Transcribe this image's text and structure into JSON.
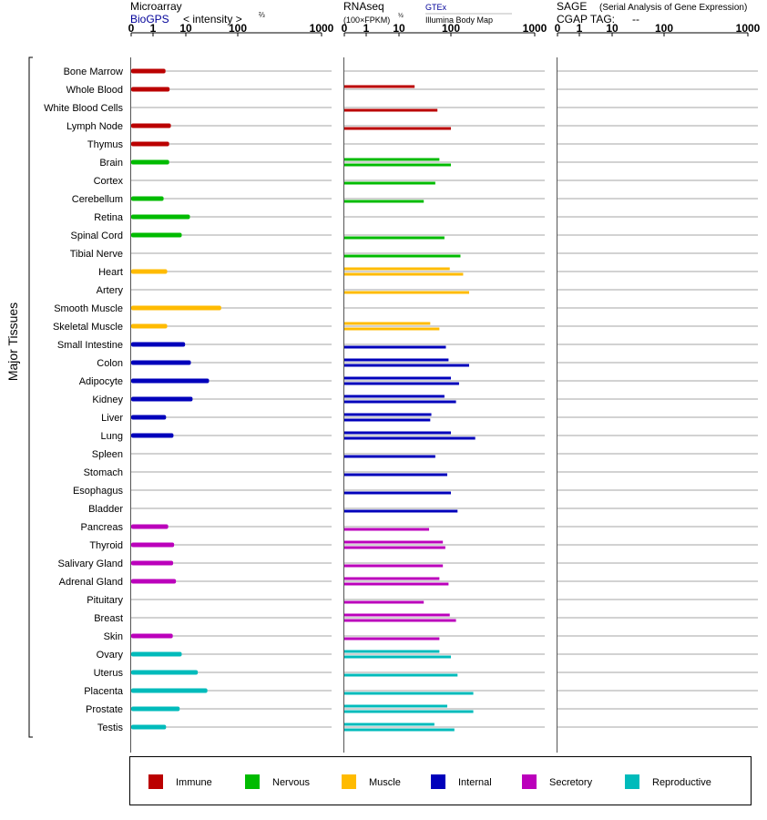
{
  "chart_data": {
    "type": "bar",
    "title": "",
    "ylabel": "Major Tissues",
    "categories": [
      "Bone Marrow",
      "Whole Blood",
      "White Blood Cells",
      "Lymph Node",
      "Thymus",
      "Brain",
      "Cortex",
      "Cerebellum",
      "Retina",
      "Spinal Cord",
      "Tibial Nerve",
      "Heart",
      "Artery",
      "Smooth Muscle",
      "Skeletal Muscle",
      "Small Intestine",
      "Colon",
      "Adipocyte",
      "Kidney",
      "Liver",
      "Lung",
      "Spleen",
      "Stomach",
      "Esophagus",
      "Bladder",
      "Pancreas",
      "Thyroid",
      "Salivary Gland",
      "Adrenal Gland",
      "Pituitary",
      "Breast",
      "Skin",
      "Ovary",
      "Uterus",
      "Placenta",
      "Prostate",
      "Testis"
    ],
    "tissue_group": [
      "Immune",
      "Immune",
      "Immune",
      "Immune",
      "Immune",
      "Nervous",
      "Nervous",
      "Nervous",
      "Nervous",
      "Nervous",
      "Nervous",
      "Muscle",
      "Muscle",
      "Muscle",
      "Muscle",
      "Internal",
      "Internal",
      "Internal",
      "Internal",
      "Internal",
      "Internal",
      "Internal",
      "Internal",
      "Internal",
      "Internal",
      "Secretory",
      "Secretory",
      "Secretory",
      "Secretory",
      "Secretory",
      "Secretory",
      "Secretory",
      "Reproductive",
      "Reproductive",
      "Reproductive",
      "Reproductive",
      "Reproductive"
    ],
    "group_colors": {
      "Immune": "#bb0000",
      "Nervous": "#00bb00",
      "Muscle": "#ffbb00",
      "Internal": "#0000bb",
      "Secretory": "#bb00bb",
      "Reproductive": "#00bbbb"
    },
    "panels": [
      {
        "name": "Microarray",
        "source": "BioGPS",
        "unit_label": "< intensity >",
        "exponent": "⅔",
        "ticks": [
          "0",
          "1",
          "10",
          "100",
          "1000"
        ],
        "xlim": [
          0,
          1000
        ],
        "series": [
          {
            "name": "BioGPS",
            "values": [
              2.4,
              3.2,
              null,
              3.5,
              3.1,
              3.1,
              null,
              2.1,
              12,
              7.5,
              null,
              2.7,
              null,
              48,
              2.7,
              9.5,
              12.5,
              28,
              13.5,
              2.5,
              4.2,
              null,
              null,
              null,
              null,
              2.9,
              4.4,
              4.1,
              5,
              null,
              null,
              4,
              7.5,
              17,
              26,
              6.5,
              2.5
            ]
          }
        ]
      },
      {
        "name": "RNAseq",
        "unit_label": "(100×FPKM)",
        "exponent": "½",
        "ticks": [
          "0",
          "1",
          "10",
          "100",
          "1000"
        ],
        "xlim": [
          0,
          1000
        ],
        "series": [
          {
            "name": "GTEx",
            "values": [
              null,
              20,
              null,
              null,
              null,
              60,
              null,
              null,
              null,
              null,
              null,
              95,
              null,
              null,
              40,
              null,
              null,
              null,
              null,
              null,
              null,
              null,
              null,
              null,
              null,
              null,
              null,
              null,
              null,
              null,
              null,
              null,
              60,
              null,
              null,
              null,
              null
            ]
          },
          {
            "name": "Illumina Body Map",
            "values": [
              null,
              null,
              55,
              100,
              null,
              100,
              50,
              30,
              null,
              75,
              130,
              140,
              165,
              null,
              60,
              80,
              165,
              125,
              115,
              40,
              195,
              50,
              85,
              100,
              120,
              38,
              78,
              70,
              90,
              30,
              115,
              60,
              100,
              120,
              185,
              185,
              110
            ]
          }
        ],
        "gtex_secondary": [
          null,
          null,
          null,
          null,
          null,
          null,
          null,
          null,
          null,
          null,
          null,
          null,
          null,
          null,
          null,
          null,
          90,
          100,
          75,
          42,
          100,
          null,
          null,
          null,
          null,
          null,
          70,
          null,
          60,
          null,
          95,
          null,
          null,
          null,
          null,
          85,
          48
        ]
      },
      {
        "name": "SAGE",
        "subtitle": "(Serial Analysis of Gene Expression)",
        "tag_label": "CGAP TAG:",
        "tag_value": "--",
        "ticks": [
          "0",
          "1",
          "10",
          "100",
          "1000"
        ],
        "xlim": [
          0,
          1000
        ],
        "series": []
      }
    ],
    "legend": [
      "Immune",
      "Nervous",
      "Muscle",
      "Internal",
      "Secretory",
      "Reproductive"
    ],
    "legend_placement": "bottom",
    "grid": true
  }
}
